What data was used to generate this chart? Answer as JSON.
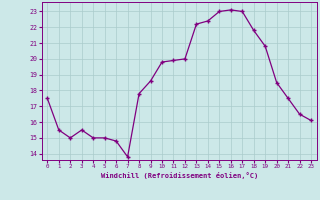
{
  "x": [
    0,
    1,
    2,
    3,
    4,
    5,
    6,
    7,
    8,
    9,
    10,
    11,
    12,
    13,
    14,
    15,
    16,
    17,
    18,
    19,
    20,
    21,
    22,
    23
  ],
  "y": [
    17.5,
    15.5,
    15.0,
    15.5,
    15.0,
    15.0,
    14.8,
    13.8,
    17.8,
    18.6,
    19.8,
    19.9,
    20.0,
    22.2,
    22.4,
    23.0,
    23.1,
    23.0,
    21.8,
    20.8,
    18.5,
    17.5,
    16.5,
    16.1
  ],
  "line_color": "#800080",
  "marker": "+",
  "bg_color": "#cce8e8",
  "grid_color": "#aacccc",
  "xlabel": "Windchill (Refroidissement éolien,°C)",
  "xlabel_color": "#800080",
  "tick_color": "#800080",
  "ylabel_vals": [
    14,
    15,
    16,
    17,
    18,
    19,
    20,
    21,
    22,
    23
  ],
  "xlim": [
    -0.5,
    23.5
  ],
  "ylim": [
    13.6,
    23.6
  ],
  "xtick_labels": [
    "0",
    "1",
    "2",
    "3",
    "4",
    "5",
    "6",
    "7",
    "8",
    "9",
    "10",
    "11",
    "12",
    "13",
    "14",
    "15",
    "16",
    "17",
    "18",
    "19",
    "20",
    "21",
    "22",
    "23"
  ]
}
